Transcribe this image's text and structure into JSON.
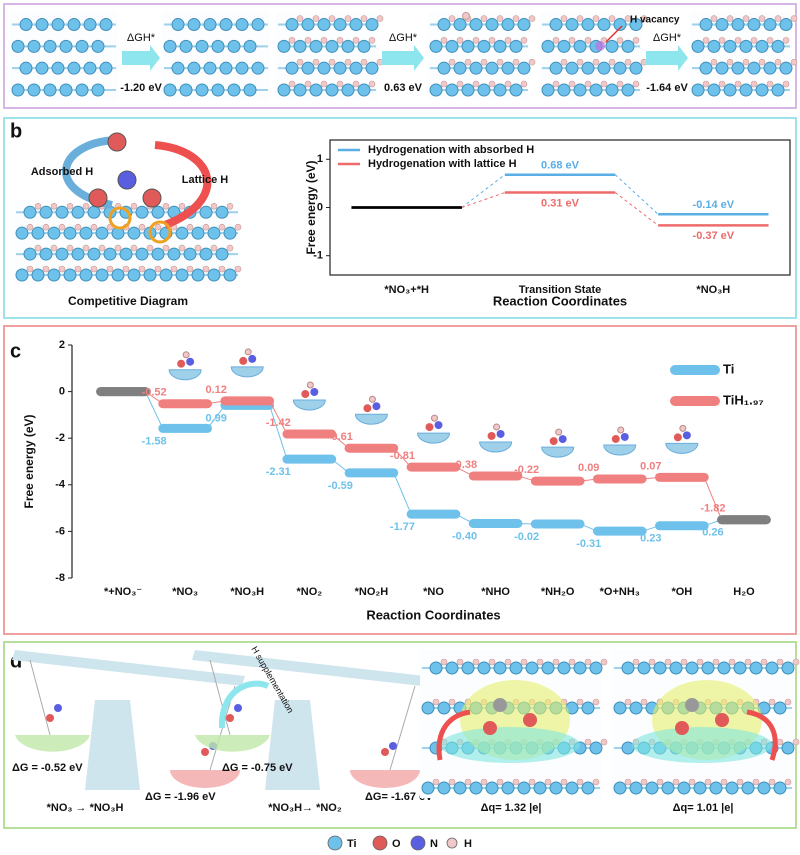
{
  "panel_a": {
    "label": "a",
    "arrow_labels": [
      "ΔGH*",
      "ΔGH*",
      "ΔGH*"
    ],
    "energies": [
      "-1.20 eV",
      "0.63 eV",
      "-1.64 eV"
    ],
    "annotation": "H vacancy"
  },
  "panel_b": {
    "label": "b",
    "left_labels": [
      "Adsorbed H",
      "Lattice H"
    ],
    "caption": "Competitive Diagram"
  },
  "panel_c": {
    "label": "c"
  },
  "panel_d": {
    "label": "d",
    "arrow_label": "H supplementation",
    "energies": [
      "ΔG = -0.52 eV",
      "ΔG = -1.96 eV",
      "ΔG = -0.75 eV",
      "ΔG= -1.67 eV"
    ],
    "captions": [
      "*NO₃ → *NO₃H",
      "*NO₃H→ *NO₂",
      "Δq= 1.32 |e|",
      "Δq= 1.01 |e|"
    ]
  },
  "element_legend": [
    {
      "name": "Ti",
      "color": "#6ec1ea"
    },
    {
      "name": "O",
      "color": "#e05a5a"
    },
    {
      "name": "N",
      "color": "#5a5ee0"
    },
    {
      "name": "H",
      "color": "#f0c8c8"
    }
  ],
  "chart_data": [
    {
      "type": "energy-level",
      "categories": [
        "*NO₃+*H",
        "Transition State",
        "*NO₃H"
      ],
      "series": [
        {
          "name": "Hydrogenation with absorbed H",
          "color": "#5aaee6",
          "values": [
            0,
            0.68,
            -0.14
          ],
          "value_labels": [
            null,
            "0.68 eV",
            "-0.14 eV"
          ]
        },
        {
          "name": "Hydrogenation with lattice H",
          "color": "#ee6b6b",
          "values": [
            0,
            0.31,
            -0.37
          ],
          "value_labels": [
            null,
            "0.31 eV",
            "-0.37 eV"
          ]
        }
      ],
      "ylabel": "Free energy (eV)",
      "xlabel": "Reaction Coordinates",
      "ylim": [
        -1.4,
        1.4
      ],
      "yticks": [
        -1,
        0,
        1
      ],
      "shared_level_color": "#000000",
      "connector_style": "dashed",
      "legend": "upper-left"
    },
    {
      "type": "energy-level",
      "categories": [
        "*+NO₃⁻",
        "*NO₃",
        "*NO₃H",
        "*NO₂",
        "*NO₂H",
        "*NO",
        "*NHO",
        "*NH₂O",
        "*O+NH₃",
        "*OH",
        "H₂O"
      ],
      "series": [
        {
          "name": "Ti",
          "color": "#6ec1ea",
          "values": [
            0,
            -1.58,
            -0.59,
            -2.9,
            -3.49,
            -5.26,
            -5.66,
            -5.68,
            -5.99,
            -5.76,
            -5.5
          ],
          "step_labels": [
            null,
            "-1.58",
            "0.99",
            "-2.31",
            "-0.59",
            "-1.77",
            "-0.40",
            "-0.02",
            "-0.31",
            "0.23",
            "0.26"
          ]
        },
        {
          "name": "TiH₁.₉₇",
          "color": "#f08080",
          "values": [
            0,
            -0.52,
            -0.4,
            -1.82,
            -2.43,
            -3.24,
            -3.62,
            -3.84,
            -3.75,
            -3.68,
            -5.5
          ],
          "step_labels": [
            null,
            "-0.52",
            "0.12",
            "-1.42",
            "-0.61",
            "-0.81",
            "-0.38",
            "-0.22",
            "0.09",
            "0.07",
            "-1.82"
          ]
        }
      ],
      "ylabel": "Free energy (eV)",
      "xlabel": "Reaction Coordinates",
      "ylim": [
        -8,
        2
      ],
      "yticks": [
        -8,
        -6,
        -4,
        -2,
        0,
        2
      ],
      "shared_level_color": "#7f7f7f",
      "connector_style": "solid",
      "legend": "upper-right"
    }
  ]
}
